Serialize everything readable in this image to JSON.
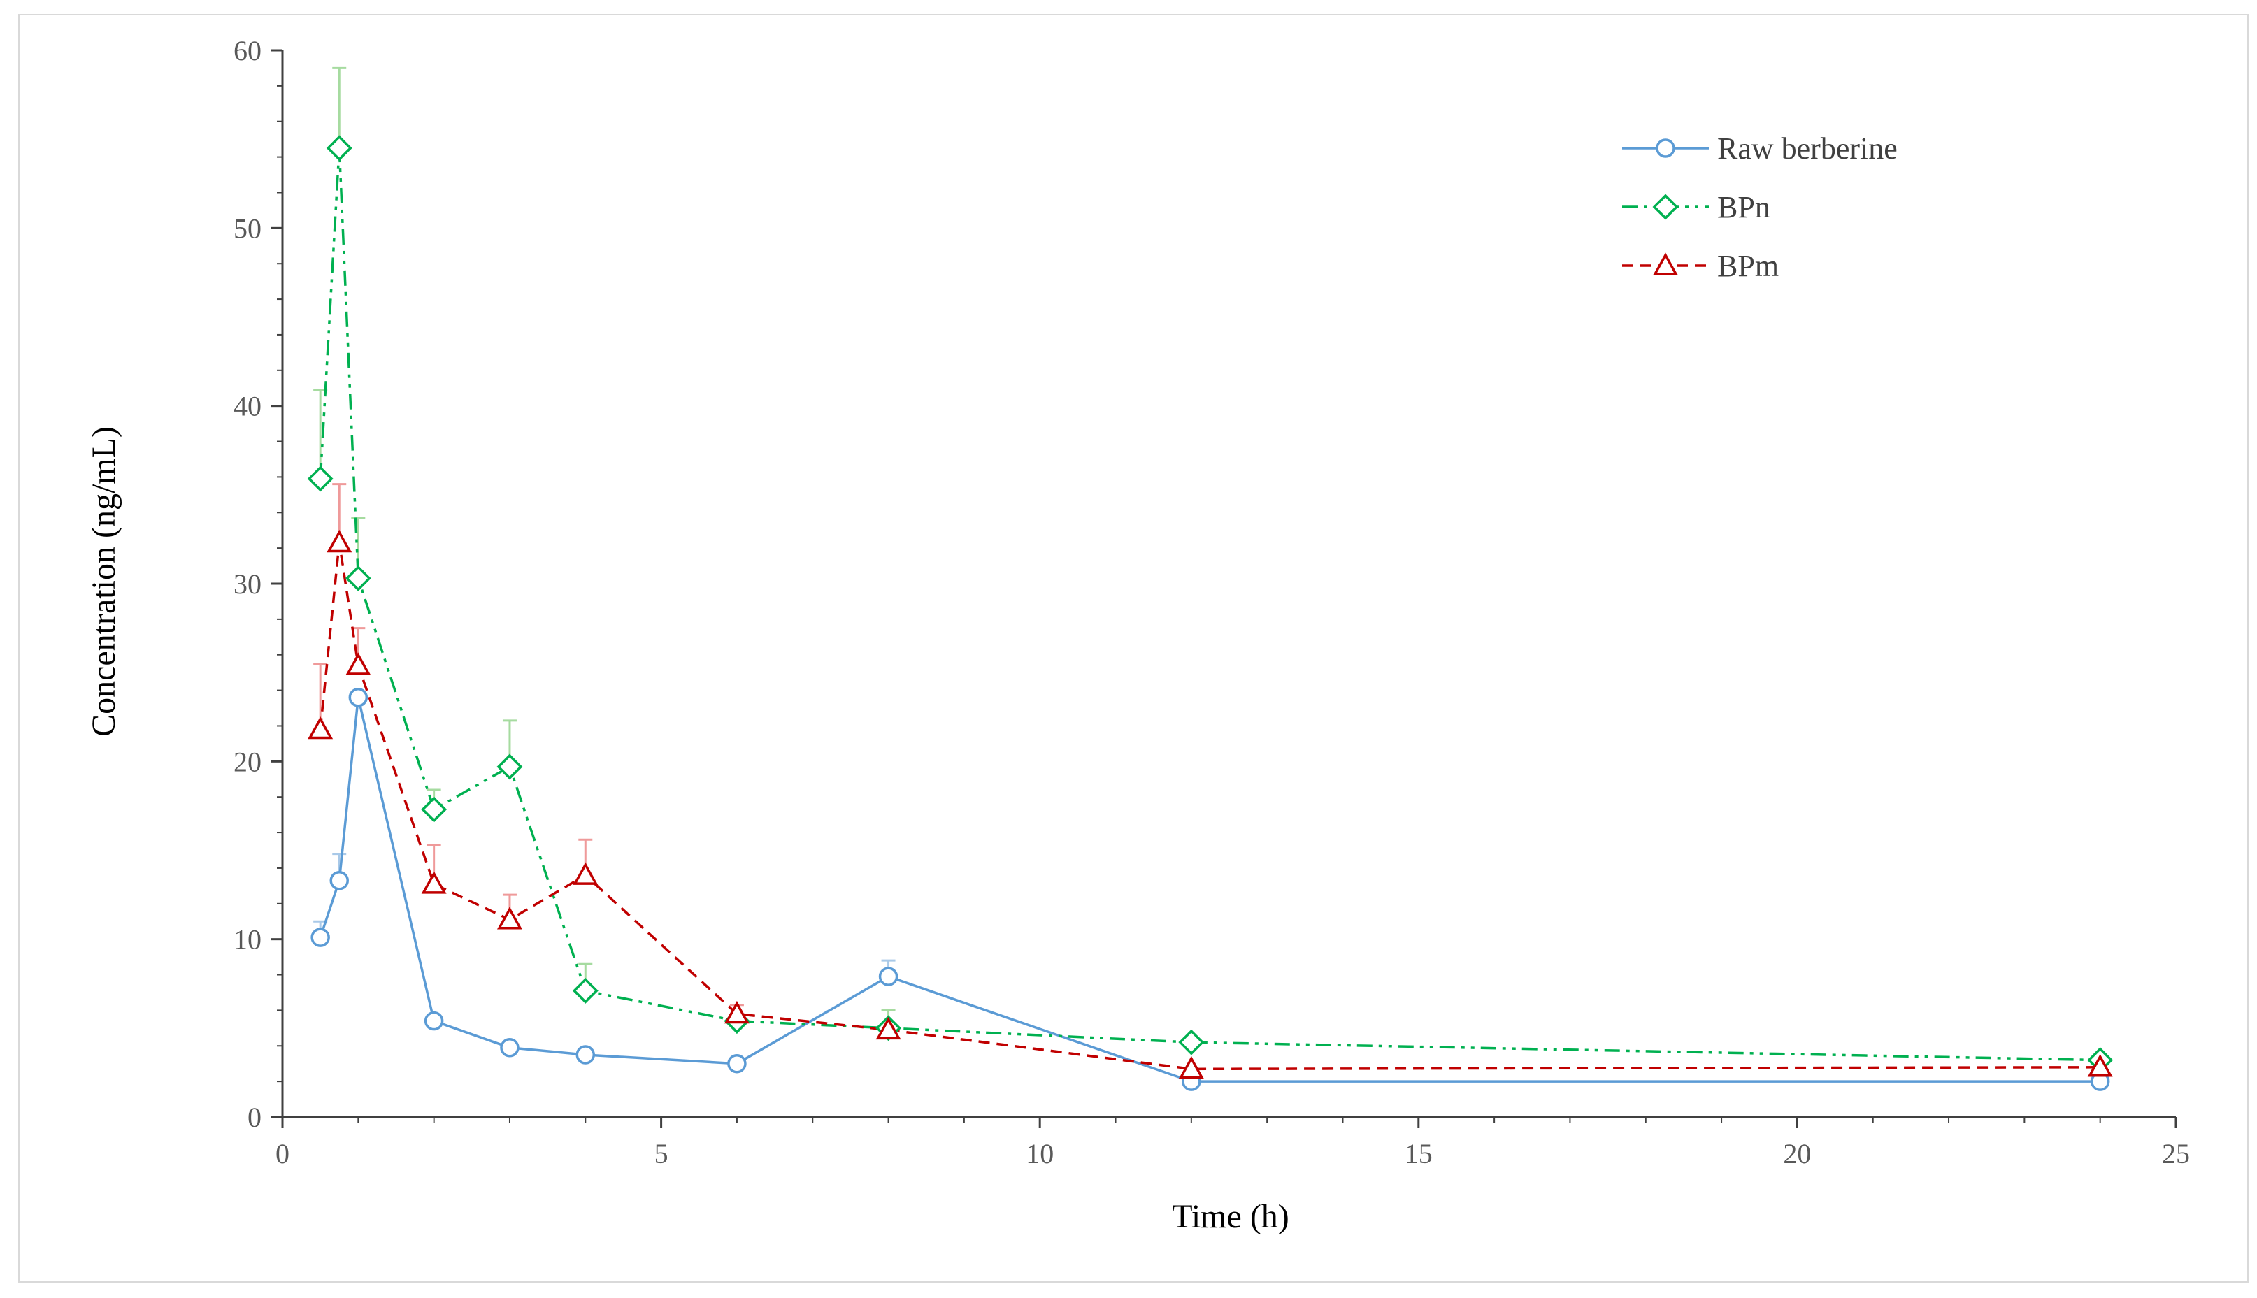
{
  "chart_data": {
    "type": "line",
    "xlabel": "Time  (h)",
    "ylabel": "Concentration  (ng/mL)",
    "xlim": [
      0,
      25
    ],
    "ylim": [
      0,
      60
    ],
    "xticks": [
      0,
      5,
      10,
      15,
      20,
      25
    ],
    "yticks": [
      0,
      10,
      20,
      30,
      40,
      50,
      60
    ],
    "grid": false,
    "legend_position": "top-right",
    "series": [
      {
        "name": "Raw berberine",
        "color": "#5b9bd5",
        "marker": "circle",
        "line_style": "solid",
        "x": [
          0.5,
          0.75,
          1,
          2,
          3,
          4,
          6,
          8,
          12,
          24
        ],
        "y": [
          10.1,
          13.3,
          23.6,
          5.4,
          3.9,
          3.5,
          3.0,
          7.9,
          2.0,
          2.0
        ],
        "error": [
          0.9,
          1.5,
          0.0,
          0.0,
          0.0,
          0.0,
          0.0,
          0.9,
          0.0,
          0.0
        ]
      },
      {
        "name": "BPn",
        "color": "#00b050",
        "marker": "diamond",
        "line_style": "dash-dot-dot",
        "x": [
          0.5,
          0.75,
          1,
          2,
          3,
          4,
          6,
          8,
          12,
          24
        ],
        "y": [
          35.9,
          54.5,
          30.3,
          17.3,
          19.7,
          7.1,
          5.4,
          5.0,
          4.2,
          3.2
        ],
        "error": [
          5.0,
          4.5,
          3.4,
          1.1,
          2.6,
          1.5,
          0.0,
          1.0,
          0.0,
          0.0
        ]
      },
      {
        "name": "BPm",
        "color": "#c00000",
        "marker": "triangle",
        "line_style": "dashed",
        "x": [
          0.5,
          0.75,
          1,
          2,
          3,
          4,
          6,
          8,
          12,
          24
        ],
        "y": [
          21.8,
          32.3,
          25.4,
          13.1,
          11.1,
          13.6,
          5.8,
          4.9,
          2.7,
          2.8
        ],
        "error": [
          3.7,
          3.3,
          2.1,
          2.2,
          1.4,
          2.0,
          0.5,
          0.0,
          0.0,
          0.0
        ]
      }
    ]
  }
}
